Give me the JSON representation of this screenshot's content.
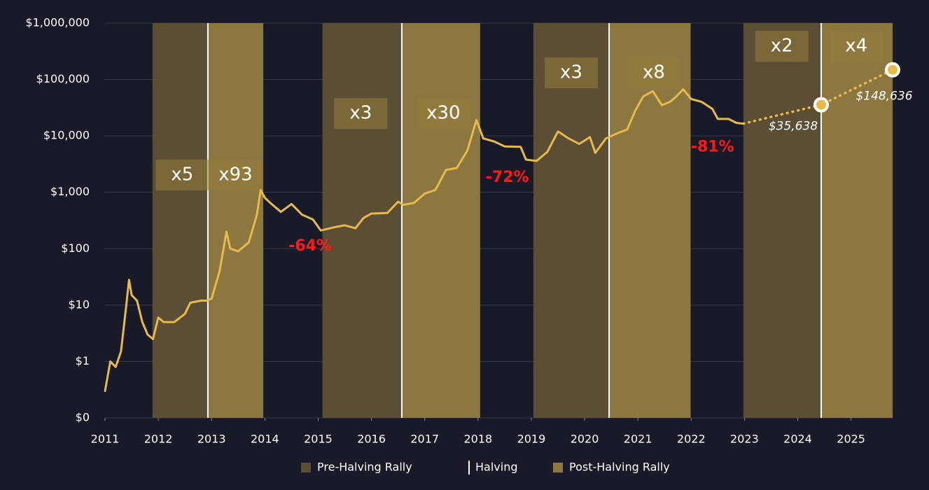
{
  "chart_data": {
    "type": "line",
    "log_y": true,
    "grid": true,
    "background": "#181a28",
    "grid_color": "#34364a",
    "legend": "bottom",
    "xlim": [
      2011,
      2025.78
    ],
    "xticks": [
      2011,
      2012,
      2013,
      2014,
      2015,
      2016,
      2017,
      2018,
      2019,
      2020,
      2021,
      2022,
      2023,
      2024,
      2025
    ],
    "ylim": [
      0.1,
      1000000
    ],
    "yticks": [
      {
        "value": 0.1,
        "label": "$0"
      },
      {
        "value": 1,
        "label": "$1"
      },
      {
        "value": 10,
        "label": "$10"
      },
      {
        "value": 100,
        "label": "$100"
      },
      {
        "value": 1000,
        "label": "$1,000"
      },
      {
        "value": 10000,
        "label": "$10,000"
      },
      {
        "value": 100000,
        "label": "$100,000"
      },
      {
        "value": 1000000,
        "label": "$1,000,000"
      }
    ],
    "pre_halving": {
      "name": "Pre-Halving Rally",
      "color": "#5b4e34",
      "ranges": [
        [
          2011.89,
          2012.93
        ],
        [
          2015.08,
          2016.57
        ],
        [
          2019.04,
          2020.46
        ],
        [
          2022.98,
          2024.44
        ]
      ]
    },
    "halving": {
      "name": "Halving",
      "color": "#ffffff",
      "x": [
        2012.93,
        2016.57,
        2020.46,
        2024.44
      ]
    },
    "post_halving": {
      "name": "Post-Halving Rally",
      "color": "#8b773f",
      "ranges": [
        [
          2012.93,
          2013.97
        ],
        [
          2016.57,
          2018.04
        ],
        [
          2020.46,
          2021.99
        ],
        [
          2024.44,
          2025.78
        ]
      ]
    },
    "price": {
      "color": "#e8b94c",
      "x": [
        2011.0,
        2011.1,
        2011.2,
        2011.3,
        2011.4,
        2011.45,
        2011.5,
        2011.6,
        2011.7,
        2011.8,
        2011.9,
        2012.0,
        2012.1,
        2012.3,
        2012.5,
        2012.6,
        2012.8,
        2012.9,
        2013.0,
        2013.15,
        2013.28,
        2013.35,
        2013.5,
        2013.7,
        2013.85,
        2013.92,
        2014.0,
        2014.1,
        2014.3,
        2014.5,
        2014.7,
        2014.9,
        2015.05,
        2015.3,
        2015.5,
        2015.7,
        2015.85,
        2016.0,
        2016.3,
        2016.5,
        2016.6,
        2016.8,
        2017.0,
        2017.2,
        2017.4,
        2017.6,
        2017.8,
        2017.97,
        2018.1,
        2018.3,
        2018.5,
        2018.8,
        2018.9,
        2019.1,
        2019.3,
        2019.5,
        2019.7,
        2019.9,
        2020.1,
        2020.2,
        2020.4,
        2020.6,
        2020.8,
        2020.95,
        2021.1,
        2021.28,
        2021.45,
        2021.6,
        2021.7,
        2021.85,
        2022.0,
        2022.2,
        2022.4,
        2022.5,
        2022.7,
        2022.85,
        2022.98
      ],
      "values": [
        0.3,
        1,
        0.8,
        1.5,
        10,
        28,
        15,
        12,
        5,
        3,
        2.5,
        6,
        5,
        5,
        7,
        11,
        12,
        12,
        13,
        40,
        200,
        100,
        90,
        130,
        400,
        1100,
        800,
        650,
        450,
        620,
        400,
        330,
        210,
        240,
        260,
        230,
        350,
        420,
        430,
        680,
        600,
        650,
        950,
        1100,
        2500,
        2700,
        5500,
        19000,
        9000,
        8000,
        6500,
        6400,
        3800,
        3600,
        5200,
        12000,
        9000,
        7200,
        9500,
        5000,
        9000,
        11000,
        13000,
        28000,
        50000,
        62000,
        35000,
        40000,
        48000,
        67000,
        45000,
        40000,
        30000,
        20000,
        20000,
        17000,
        16500
      ]
    },
    "projection": {
      "color": "#e8b94c",
      "x": [
        2022.98,
        2024.44,
        2025.78
      ],
      "values": [
        16500,
        35638,
        148636
      ],
      "value_labels": [
        null,
        "$35,638",
        "$148,636"
      ]
    },
    "multipliers": [
      {
        "text": "x5",
        "x": 2012.45,
        "y": 2020
      },
      {
        "text": "x93",
        "x": 2013.45,
        "y": 2020
      },
      {
        "text": "x3",
        "x": 2015.8,
        "y": 24900
      },
      {
        "text": "x30",
        "x": 2017.35,
        "y": 24900
      },
      {
        "text": "x3",
        "x": 2019.75,
        "y": 130900
      },
      {
        "text": "x8",
        "x": 2021.3,
        "y": 130900
      },
      {
        "text": "x2",
        "x": 2023.7,
        "y": 387000
      },
      {
        "text": "x4",
        "x": 2025.1,
        "y": 387000
      }
    ],
    "drawdowns": {
      "color": "#ff1a1a",
      "items": [
        {
          "text": "-64%",
          "x": 2014.85,
          "y": 110
        },
        {
          "text": "-72%",
          "x": 2018.55,
          "y": 1800
        },
        {
          "text": "-81%",
          "x": 2022.4,
          "y": 6300
        }
      ]
    }
  }
}
